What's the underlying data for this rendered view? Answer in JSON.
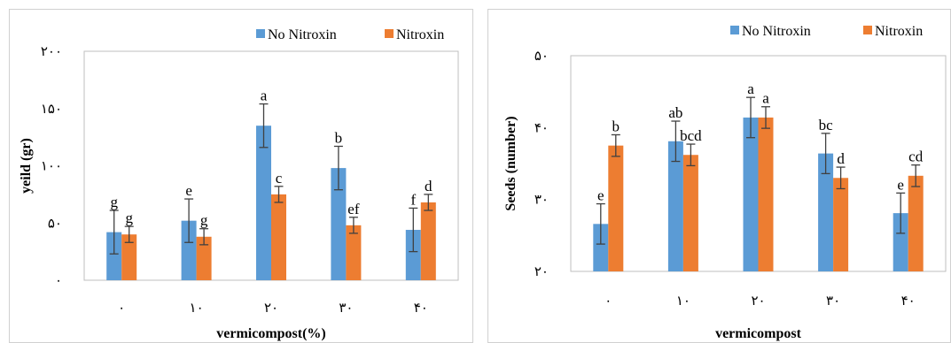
{
  "colors": {
    "no_nitroxin": "#5B9BD5",
    "nitroxin": "#ED7D31",
    "axis": "#BFBFBF",
    "error_bar": "#404040",
    "border": "#D0D0D0"
  },
  "chart_data": [
    {
      "type": "bar",
      "title": "",
      "xlabel": "vermicompost(%)",
      "ylabel": "yeild (gr)",
      "categories": [
        "۰",
        "۱۰",
        "۲۰",
        "۳۰",
        "۴۰"
      ],
      "ylim": [
        0,
        200
      ],
      "yticks": [
        0,
        50,
        100,
        150,
        200
      ],
      "ytick_labels": [
        "۰",
        "۵۰",
        "۱۰۰",
        "۱۵۰",
        "۲۰۰"
      ],
      "grid": false,
      "legend_position": "top-right",
      "series": [
        {
          "name": "No Nitroxin",
          "color": "#5B9BD5",
          "values": [
            42,
            52,
            135,
            98,
            44
          ],
          "errors": [
            19,
            19,
            19,
            19,
            19
          ],
          "labels": [
            "g",
            "e",
            "a",
            "b",
            "f"
          ]
        },
        {
          "name": "Nitroxin",
          "color": "#ED7D31",
          "values": [
            40,
            38,
            75,
            48,
            68
          ],
          "errors": [
            7,
            7,
            7,
            7,
            7
          ],
          "labels": [
            "g",
            "g",
            "c",
            "ef",
            "d"
          ]
        }
      ]
    },
    {
      "type": "bar",
      "title": "",
      "xlabel": "vermicompost",
      "ylabel": "Seeds (number)",
      "categories": [
        "۰",
        "۱۰",
        "۲۰",
        "۳۰",
        "۴۰"
      ],
      "ylim": [
        20,
        50
      ],
      "yticks": [
        20,
        30,
        40,
        50
      ],
      "ytick_labels": [
        "۲۰",
        "۳۰",
        "۴۰",
        "۵۰"
      ],
      "grid": false,
      "legend_position": "top-right",
      "series": [
        {
          "name": "No Nitroxin",
          "color": "#5B9BD5",
          "values": [
            26.6,
            38.1,
            41.4,
            36.4,
            28.1
          ],
          "errors": [
            2.8,
            2.8,
            2.8,
            2.8,
            2.8
          ],
          "labels": [
            "e",
            "ab",
            "a",
            "bc",
            "e"
          ]
        },
        {
          "name": "Nitroxin",
          "color": "#ED7D31",
          "values": [
            37.5,
            36.2,
            41.4,
            33.0,
            33.3
          ],
          "errors": [
            1.5,
            1.5,
            1.5,
            1.5,
            1.5
          ],
          "labels": [
            "b",
            "bcd",
            "a",
            "d",
            "cd"
          ]
        }
      ]
    }
  ]
}
